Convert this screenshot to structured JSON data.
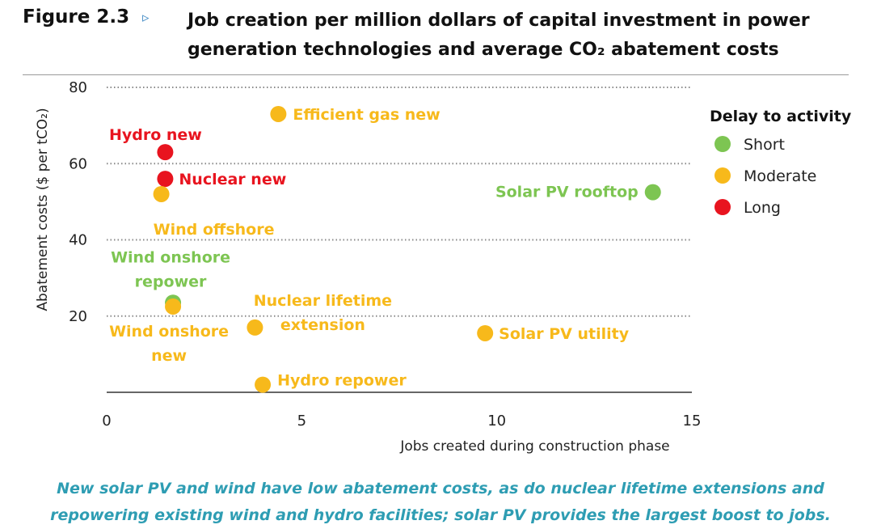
{
  "header": {
    "figure_label": "Figure 2.3",
    "arrow_glyph": "▹",
    "title_line1": "Job creation per million dollars of capital investment in power",
    "title_line2": "generation technologies and average CO₂ abatement costs"
  },
  "caption": {
    "line1": "New solar PV and wind have low abatement costs, as do nuclear lifetime extensions and",
    "line2": "repowering existing wind and hydro facilities; solar PV provides the largest boost to jobs."
  },
  "chart_data": {
    "type": "scatter",
    "xlabel": "Jobs created during construction phase",
    "ylabel": "Abatement costs ($ per tCO₂)",
    "xlim": [
      0,
      15
    ],
    "ylim": [
      0,
      80
    ],
    "x_ticks": [
      "0",
      "5",
      "10",
      "15"
    ],
    "y_ticks": [
      "20",
      "40",
      "60",
      "80"
    ],
    "grid": "horizontal dotted",
    "legend": {
      "title": "Delay to activity",
      "placement": "right",
      "entries": [
        {
          "name": "Short",
          "color": "#7dc552"
        },
        {
          "name": "Moderate",
          "color": "#f7b91b"
        },
        {
          "name": "Long",
          "color": "#e8141f"
        }
      ]
    },
    "points": [
      {
        "label": "Efficient gas new",
        "label_lines": [
          "Efficient gas new"
        ],
        "x": 4.4,
        "y": 73,
        "delay": "Moderate"
      },
      {
        "label": "Hydro new",
        "label_lines": [
          "Hydro new"
        ],
        "x": 1.5,
        "y": 63,
        "delay": "Long"
      },
      {
        "label": "Nuclear new",
        "label_lines": [
          "Nuclear new"
        ],
        "x": 1.5,
        "y": 56,
        "delay": "Long"
      },
      {
        "label": "Wind offshore",
        "label_lines": [
          "Wind offshore"
        ],
        "x": 1.4,
        "y": 52,
        "delay": "Moderate"
      },
      {
        "label": "Solar PV rooftop",
        "label_lines": [
          "Solar PV rooftop"
        ],
        "x": 14.0,
        "y": 52.5,
        "delay": "Short"
      },
      {
        "label": "Wind onshore repower",
        "label_lines": [
          "Wind onshore",
          "repower"
        ],
        "x": 1.7,
        "y": 23.5,
        "delay": "Short"
      },
      {
        "label": "Wind onshore new",
        "label_lines": [
          "Wind onshore",
          "new"
        ],
        "x": 1.7,
        "y": 22.5,
        "delay": "Moderate"
      },
      {
        "label": "Nuclear lifetime extension",
        "label_lines": [
          "Nuclear lifetime",
          "extension"
        ],
        "x": 3.8,
        "y": 17,
        "delay": "Moderate"
      },
      {
        "label": "Solar PV utility",
        "label_lines": [
          "Solar PV utility"
        ],
        "x": 9.7,
        "y": 15.5,
        "delay": "Moderate"
      },
      {
        "label": "Hydro repower",
        "label_lines": [
          "Hydro repower"
        ],
        "x": 4.0,
        "y": 2,
        "delay": "Moderate"
      }
    ]
  }
}
